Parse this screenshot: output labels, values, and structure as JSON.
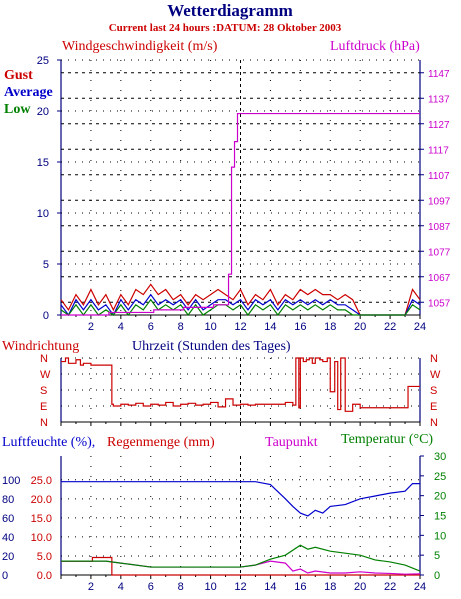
{
  "header": {
    "title": "Wetterdiagramm",
    "subtitle": "Current last 24 hours :DATUM: 28 Oktober 2003"
  },
  "colors": {
    "navy": "#000080",
    "red": "#cc0000",
    "magenta": "#cc00cc",
    "green": "#008000",
    "blue": "#0000cc"
  },
  "chart_data": [
    {
      "id": "wind",
      "type": "line",
      "title": "Windgeschwindigkeit (m/s)",
      "right_label": "Luftdruck (hPa)",
      "x_ticks": [
        "2",
        "4",
        "6",
        "8",
        "10",
        "12",
        "14",
        "16",
        "18",
        "20",
        "22",
        "24"
      ],
      "x_range": [
        0,
        24
      ],
      "y_range": [
        0,
        25
      ],
      "y_ticks": [
        "0",
        "5",
        "10",
        "15",
        "20",
        "25"
      ],
      "y2_range": [
        1052,
        1152
      ],
      "y2_ticks": [
        "1057",
        "1067",
        "1077",
        "1087",
        "1097",
        "1107",
        "1117",
        "1127",
        "1137",
        "1147"
      ],
      "grid": true,
      "legend": [
        "Gust",
        "Average",
        "Low"
      ],
      "series": [
        {
          "name": "Gust",
          "color": "#cc0000",
          "x": [
            0,
            0.5,
            1,
            1.5,
            2,
            2.5,
            3,
            3.5,
            4,
            4.5,
            5,
            5.5,
            6,
            6.5,
            7,
            7.5,
            8,
            8.5,
            9,
            9.5,
            10,
            10.5,
            11,
            11.5,
            12,
            12.5,
            13,
            13.5,
            14,
            14.5,
            15,
            15.5,
            16,
            16.5,
            17,
            17.5,
            18,
            18.5,
            19,
            19.5,
            20,
            20.5,
            21,
            21.5,
            22,
            22.5,
            23,
            23.5,
            24
          ],
          "values": [
            1.5,
            0.5,
            2,
            1,
            2.5,
            1,
            2,
            0.5,
            2,
            1,
            2.5,
            2,
            3,
            2,
            2.5,
            1.5,
            2,
            1,
            2,
            1.5,
            2,
            2.5,
            2,
            1.5,
            2.5,
            1,
            2,
            1.5,
            2.5,
            1,
            2,
            1.5,
            2.5,
            2,
            2.5,
            2,
            2,
            1.5,
            2,
            1.5,
            0,
            0,
            0,
            0,
            0,
            0,
            0,
            2.5,
            1.5
          ]
        },
        {
          "name": "Average",
          "color": "#0000cc",
          "x": [
            0,
            0.5,
            1,
            1.5,
            2,
            2.5,
            3,
            3.5,
            4,
            4.5,
            5,
            5.5,
            6,
            6.5,
            7,
            7.5,
            8,
            8.5,
            9,
            9.5,
            10,
            10.5,
            11,
            11.5,
            12,
            12.5,
            13,
            13.5,
            14,
            14.5,
            15,
            15.5,
            16,
            16.5,
            17,
            17.5,
            18,
            18.5,
            19,
            19.5,
            20,
            20.5,
            21,
            21.5,
            22,
            22.5,
            23,
            23.5,
            24
          ],
          "values": [
            1,
            0,
            1.5,
            0.5,
            1.5,
            0.5,
            1,
            0,
            1.5,
            0.5,
            1.5,
            1,
            2,
            1,
            1.5,
            1,
            1.5,
            0.5,
            1.5,
            0.5,
            1,
            1.5,
            1.5,
            1,
            1.5,
            0.5,
            1.5,
            1,
            1.5,
            0.5,
            1.5,
            1,
            1.5,
            1,
            1.5,
            1,
            1.5,
            1,
            1,
            0.5,
            0,
            0,
            0,
            0,
            0,
            0,
            0,
            1.5,
            1
          ]
        },
        {
          "name": "Low",
          "color": "#008000",
          "x": [
            0,
            0.5,
            1,
            1.5,
            2,
            2.5,
            3,
            3.5,
            4,
            4.5,
            5,
            5.5,
            6,
            6.5,
            7,
            7.5,
            8,
            8.5,
            9,
            9.5,
            10,
            10.5,
            11,
            11.5,
            12,
            12.5,
            13,
            13.5,
            14,
            14.5,
            15,
            15.5,
            16,
            16.5,
            17,
            17.5,
            18,
            18.5,
            19,
            19.5,
            20,
            20.5,
            21,
            21.5,
            22,
            22.5,
            23,
            23.5,
            24
          ],
          "values": [
            0.5,
            0,
            1,
            0,
            1,
            0,
            0.5,
            0,
            1,
            0,
            1,
            0.5,
            1.5,
            0.5,
            1,
            0.5,
            1,
            0,
            1,
            0,
            0.5,
            1,
            1,
            0.5,
            1,
            0,
            1,
            0.5,
            1,
            0,
            1,
            0.5,
            1,
            0.5,
            1,
            0.5,
            1,
            0.5,
            0.5,
            0,
            0,
            0,
            0,
            0,
            0,
            0,
            0,
            1,
            0.5
          ]
        },
        {
          "name": "Luftdruck",
          "axis": "right",
          "color": "#cc00cc",
          "x": [
            0,
            3,
            3.2,
            6,
            6.2,
            8,
            8.2,
            10,
            10.2,
            11,
            11.2,
            11.4,
            11.6,
            11.8,
            24
          ],
          "values": [
            1052,
            1052,
            1053,
            1053,
            1054,
            1054,
            1055,
            1055,
            1056,
            1056,
            1068,
            1110,
            1120,
            1131,
            1131
          ]
        }
      ]
    },
    {
      "id": "direction",
      "type": "line",
      "title": "Windrichtung",
      "xlabel": "Uhrzeit (Stunden des Tages)",
      "x_range": [
        0,
        24
      ],
      "y_ticks": [
        "N",
        "W",
        "S",
        "E",
        "N"
      ],
      "y_range": [
        0,
        360
      ],
      "grid": true,
      "series": [
        {
          "name": "Windrichtung",
          "color": "#cc0000",
          "x": [
            0,
            0.3,
            0.5,
            1,
            1.3,
            1.5,
            2,
            3,
            3.4,
            3.5,
            4,
            4.5,
            5,
            5.5,
            6,
            6.5,
            7,
            7.5,
            8,
            8.5,
            9,
            9.5,
            10,
            10.5,
            11,
            11.5,
            12,
            12.5,
            13,
            14,
            15,
            15.5,
            15.7,
            15.9,
            16,
            16.2,
            16.4,
            16.6,
            16.8,
            17,
            17.3,
            17.5,
            17.8,
            18,
            18.3,
            18.5,
            18.7,
            19,
            19.5,
            20,
            21,
            22,
            23,
            23.2,
            24
          ],
          "values": [
            340,
            360,
            330,
            350,
            320,
            330,
            320,
            320,
            100,
            90,
            100,
            95,
            105,
            90,
            100,
            95,
            110,
            90,
            100,
            105,
            95,
            100,
            110,
            85,
            130,
            95,
            100,
            95,
            100,
            100,
            110,
            95,
            360,
            80,
            360,
            340,
            350,
            360,
            330,
            360,
            350,
            340,
            360,
            170,
            340,
            70,
            360,
            60,
            100,
            80,
            80,
            80,
            80,
            200,
            200
          ]
        }
      ]
    },
    {
      "id": "humidity",
      "type": "line",
      "title": "Luftfeuchte (%),Regenmenge (mm)",
      "right_label": "Taupunkt",
      "right_label2": "Temperatur (",
      "right_label2_unit": "°C",
      "right_label2_end": ")",
      "x_ticks": [
        "2",
        "4",
        "6",
        "8",
        "10",
        "12",
        "14",
        "16",
        "18",
        "20",
        "22",
        "24"
      ],
      "x_range": [
        0,
        24
      ],
      "y_ticks": [
        "0",
        "20",
        "40",
        "60",
        "80",
        "100"
      ],
      "y_range": [
        0,
        125
      ],
      "rain_ticks": [
        "0.0",
        "5.0",
        "10.0",
        "15.0",
        "20.0",
        "25.0"
      ],
      "y2_ticks": [
        "0",
        "5",
        "10",
        "15",
        "20",
        "25",
        "30"
      ],
      "y2_range": [
        0,
        30
      ],
      "grid": true,
      "series": [
        {
          "name": "Luftfeuchte",
          "color": "#0000cc",
          "x": [
            0,
            13,
            14,
            15,
            15.5,
            16,
            16.5,
            17,
            17.5,
            18,
            19,
            20,
            21,
            22,
            23,
            23.5,
            24
          ],
          "values": [
            98,
            98,
            95,
            80,
            72,
            65,
            62,
            68,
            65,
            72,
            74,
            80,
            83,
            86,
            88,
            96,
            96
          ]
        },
        {
          "name": "Regenmenge",
          "color": "#cc0000",
          "x": [
            0,
            2,
            2.1,
            3.3,
            3.4,
            24
          ],
          "values": [
            3.6,
            3.6,
            4.6,
            4.6,
            0,
            0
          ]
        },
        {
          "name": "Taupunkt",
          "axis": "right",
          "color": "#cc00cc",
          "x": [
            0,
            3,
            4,
            6,
            8,
            10,
            12,
            13,
            14,
            15,
            15.5,
            16,
            16.5,
            17,
            18,
            19,
            20,
            21,
            22,
            23,
            24
          ],
          "values": [
            3.5,
            3.5,
            3,
            2,
            2,
            2,
            2,
            2.5,
            3.5,
            3,
            1,
            1.5,
            0.5,
            1,
            0.5,
            0.5,
            0.8,
            0.5,
            0.4,
            0.2,
            0.3
          ]
        },
        {
          "name": "Temperatur",
          "axis": "right",
          "color": "#008000",
          "x": [
            0,
            3,
            4,
            6,
            8,
            10,
            12,
            13,
            14,
            15,
            16,
            16.5,
            17,
            18,
            19,
            20,
            21,
            22,
            23,
            24
          ],
          "values": [
            3.5,
            3.5,
            3,
            2,
            2,
            2,
            2,
            2.5,
            4,
            5,
            7.5,
            6.5,
            7,
            6,
            5.5,
            5,
            3.8,
            3.3,
            2.5,
            1
          ]
        }
      ]
    }
  ]
}
